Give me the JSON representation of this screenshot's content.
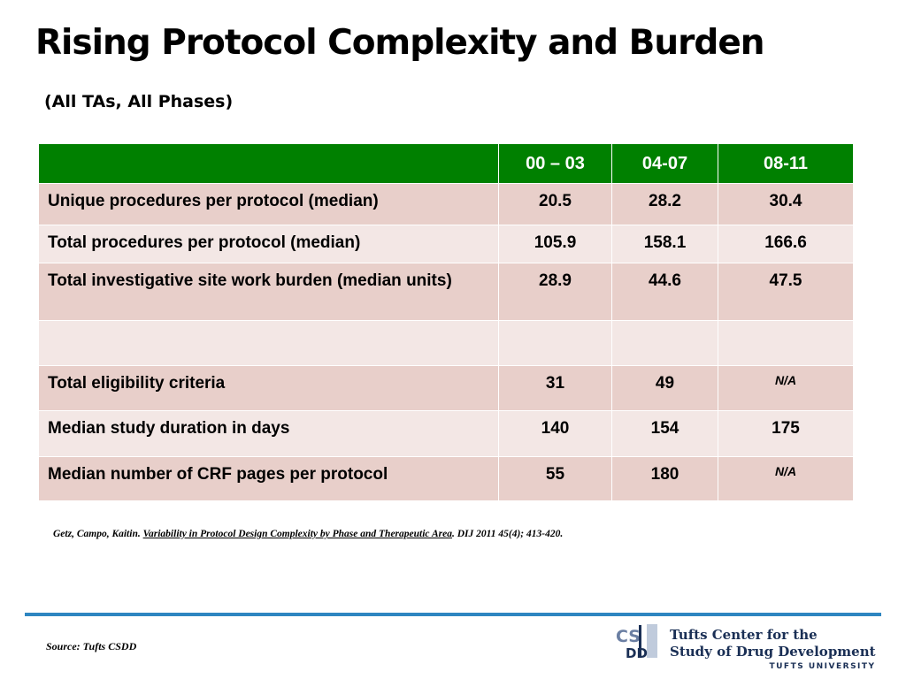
{
  "slide": {
    "title": "Rising Protocol Complexity and Burden",
    "subtitle": "(All TAs, All Phases)"
  },
  "table": {
    "header": [
      "",
      "00 – 03",
      "04-07",
      "08-11"
    ],
    "rows": [
      {
        "label": "Unique procedures per protocol (median)",
        "values": [
          "20.5",
          "28.2",
          "30.4"
        ]
      },
      {
        "label": "Total procedures per protocol (median)",
        "values": [
          "105.9",
          "158.1",
          "166.6"
        ]
      },
      {
        "label": "Total investigative site work burden (median units)",
        "values": [
          "28.9",
          "44.6",
          "47.5"
        ]
      },
      {
        "label": "",
        "values": [
          "",
          "",
          ""
        ]
      },
      {
        "label": "Total eligibility criteria",
        "values": [
          "31",
          "49",
          "N/A"
        ]
      },
      {
        "label": "Median study duration in days",
        "values": [
          "140",
          "154",
          "175"
        ]
      },
      {
        "label": "Median number of CRF pages per protocol",
        "values": [
          "55",
          "180",
          "N/A"
        ]
      }
    ]
  },
  "citation": {
    "authors": "Getz, Campo, Kaitin.",
    "article": "Variability in Protocol Design Complexity by Phase and Therapeutic Area",
    "journal": ".  DIJ 2011 45(4); 413-420."
  },
  "footer": {
    "source": "Source: Tufts CSDD",
    "logo_line1": "Tufts Center for the",
    "logo_line2": "Study of Drug Development",
    "logo_university": "TUFTS UNIVERSITY",
    "logo_mark_text": "CSDD",
    "brand_color": "#1a2f55"
  },
  "colors": {
    "header_green": "#008000",
    "row_dark": "#e8cfca",
    "row_light": "#f3e7e5",
    "rule_blue": "#2e86c1"
  }
}
